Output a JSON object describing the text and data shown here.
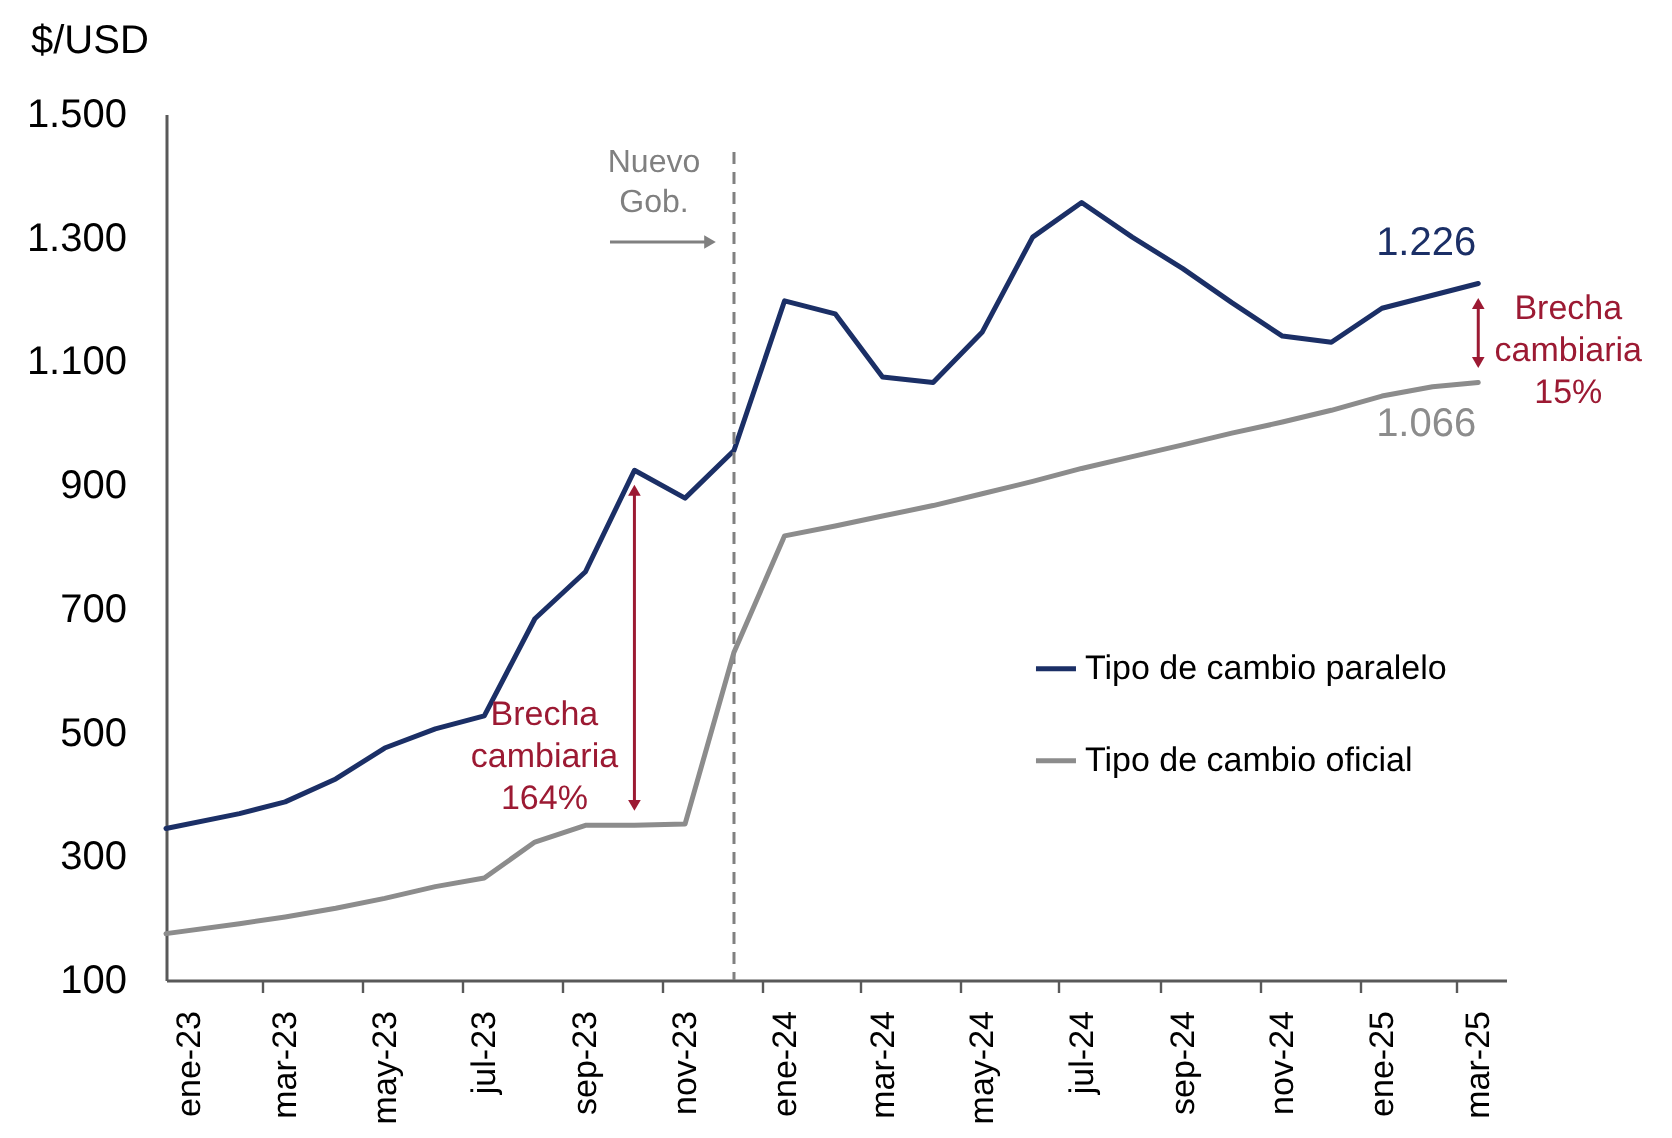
{
  "chart_data": {
    "type": "line",
    "ylabel": "$/USD",
    "x": [
      "2023-01-01",
      "2023-02-15",
      "2023-03-15",
      "2023-04-15",
      "2023-05-15",
      "2023-06-15",
      "2023-07-15",
      "2023-08-15",
      "2023-09-15",
      "2023-10-15",
      "2023-11-15",
      "2023-12-15",
      "2024-01-15",
      "2024-02-15",
      "2024-03-15",
      "2024-04-15",
      "2024-05-15",
      "2024-06-15",
      "2024-07-15",
      "2024-08-15",
      "2024-09-15",
      "2024-10-15",
      "2024-11-15",
      "2024-12-15",
      "2025-01-15",
      "2025-02-15",
      "2025-03-15"
    ],
    "xlim": [
      "2023-01-01",
      "2025-04-01"
    ],
    "xticks": [
      {
        "value": "2023-01-15",
        "label": "ene-23"
      },
      {
        "value": "2023-03-01",
        "label": null
      },
      {
        "value": "2023-03-15",
        "label": "mar-23"
      },
      {
        "value": "2023-05-01",
        "label": null
      },
      {
        "value": "2023-05-15",
        "label": "may-23"
      },
      {
        "value": "2023-07-01",
        "label": null
      },
      {
        "value": "2023-07-15",
        "label": "jul-23"
      },
      {
        "value": "2023-09-01",
        "label": null
      },
      {
        "value": "2023-09-15",
        "label": "sep-23"
      },
      {
        "value": "2023-11-01",
        "label": null
      },
      {
        "value": "2023-11-15",
        "label": "nov-23"
      },
      {
        "value": "2024-01-01",
        "label": null
      },
      {
        "value": "2024-01-15",
        "label": "ene-24"
      },
      {
        "value": "2024-03-01",
        "label": null
      },
      {
        "value": "2024-03-15",
        "label": "mar-24"
      },
      {
        "value": "2024-05-01",
        "label": null
      },
      {
        "value": "2024-05-15",
        "label": "may-24"
      },
      {
        "value": "2024-07-01",
        "label": null
      },
      {
        "value": "2024-07-15",
        "label": "jul-24"
      },
      {
        "value": "2024-09-01",
        "label": null
      },
      {
        "value": "2024-09-15",
        "label": "sep-24"
      },
      {
        "value": "2024-11-01",
        "label": null
      },
      {
        "value": "2024-11-15",
        "label": "nov-24"
      },
      {
        "value": "2025-01-01",
        "label": null
      },
      {
        "value": "2025-01-15",
        "label": "ene-25"
      },
      {
        "value": "2025-03-01",
        "label": null
      },
      {
        "value": "2025-03-15",
        "label": "mar-25"
      }
    ],
    "ylim": [
      100,
      1500
    ],
    "yticks": [
      100,
      300,
      500,
      700,
      900,
      {
        "value": 1100,
        "label": "1.100"
      },
      {
        "value": 1300,
        "label": "1.300"
      },
      {
        "value": 1500,
        "label": "1.500"
      }
    ],
    "series": [
      {
        "name": "Tipo de cambio paralelo",
        "color": "#1b2f66",
        "values": [
          345,
          369,
          388,
          425,
          475,
          506,
          527,
          684,
          760,
          924,
          879,
          956,
          1198,
          1177,
          1075,
          1066,
          1147,
          1301,
          1357,
          1301,
          1250,
          1195,
          1141,
          1131,
          1186,
          1207,
          1226
        ],
        "value_labels": [
          null,
          null,
          null,
          null,
          null,
          null,
          null,
          null,
          null,
          null,
          null,
          null,
          null,
          null,
          null,
          null,
          null,
          null,
          null,
          null,
          null,
          null,
          null,
          null,
          null,
          null,
          "1.226"
        ]
      },
      {
        "name": "Tipo de cambio oficial",
        "color": "#8c8c8c",
        "values": [
          175,
          191,
          202,
          216,
          232,
          251,
          265,
          323,
          350,
          350,
          352,
          630,
          818,
          834,
          850,
          867,
          886,
          906,
          927,
          946,
          965,
          984,
          1002,
          1021,
          1044,
          1059,
          1066
        ],
        "value_labels": [
          null,
          null,
          null,
          null,
          null,
          null,
          null,
          null,
          null,
          null,
          null,
          null,
          null,
          null,
          null,
          null,
          null,
          null,
          null,
          null,
          null,
          null,
          null,
          null,
          null,
          null,
          "1.066"
        ]
      }
    ],
    "legend": "right",
    "ref_lines": [
      {
        "axis": "x",
        "value": "2023-12-15",
        "label": "Nuevo Gob.",
        "color": "#808080",
        "line_style": "dashed"
      }
    ],
    "annotations": [
      {
        "text": "Brecha cambiaria 164%",
        "x": "2023-10-15",
        "y": 350
      },
      {
        "text": "Brecha cambiaria 15%",
        "x": "2025-03-15",
        "y": 1226
      }
    ]
  }
}
